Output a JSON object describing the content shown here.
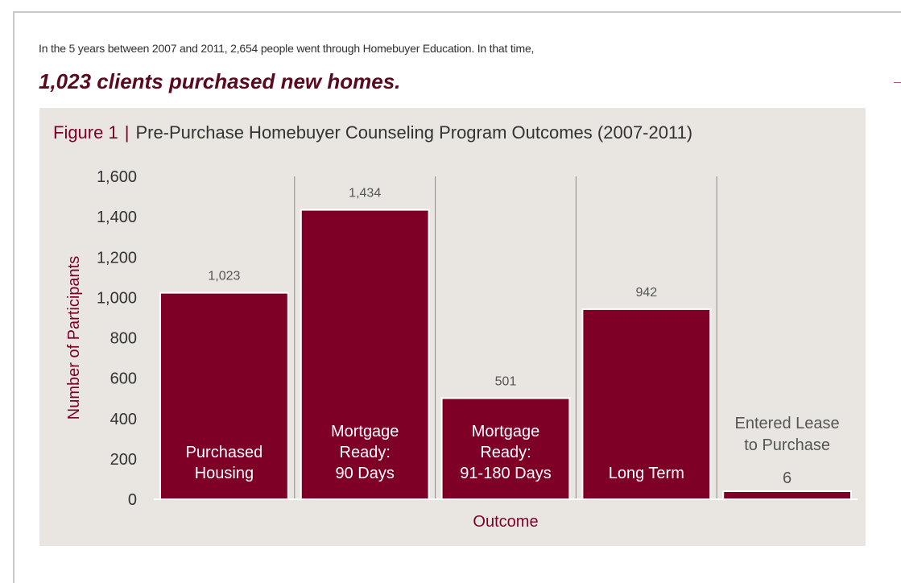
{
  "intro_text": "In the 5 years between 2007 and 2011, 2,654 people went through Homebuyer Education.  In that time,",
  "headline": "1,023 clients purchased new homes.",
  "figure": {
    "label": "Figure 1",
    "separator": "|",
    "title": "Pre-Purchase Homebuyer Counseling Program Outcomes (2007-2011)"
  },
  "colors": {
    "bar": "#7e0026",
    "panel": "#e9e5e1",
    "accent_text": "#7e0026",
    "axis_text": "#333333"
  },
  "chart_data": {
    "type": "bar",
    "categories": [
      [
        "Purchased",
        "Housing"
      ],
      [
        "Mortgage",
        "Ready:",
        "90 Days"
      ],
      [
        "Mortgage",
        "Ready:",
        "91-180 Days"
      ],
      [
        "Long Term"
      ],
      [
        "Entered Lease",
        "to Purchase"
      ]
    ],
    "values": [
      1023,
      1434,
      501,
      942,
      6
    ],
    "value_labels": [
      "1,023",
      "1,434",
      "501",
      "942",
      "6"
    ],
    "xlabel": "Outcome",
    "ylabel": "Number of Participants",
    "ylim": [
      0,
      1600
    ],
    "yticks": [
      0,
      200,
      400,
      600,
      800,
      1000,
      1200,
      1400,
      1600
    ],
    "ytick_labels": [
      "0",
      "200",
      "400",
      "600",
      "800",
      "1,000",
      "1,200",
      "1,400",
      "1,600"
    ],
    "grid": false,
    "category_separators": true
  }
}
